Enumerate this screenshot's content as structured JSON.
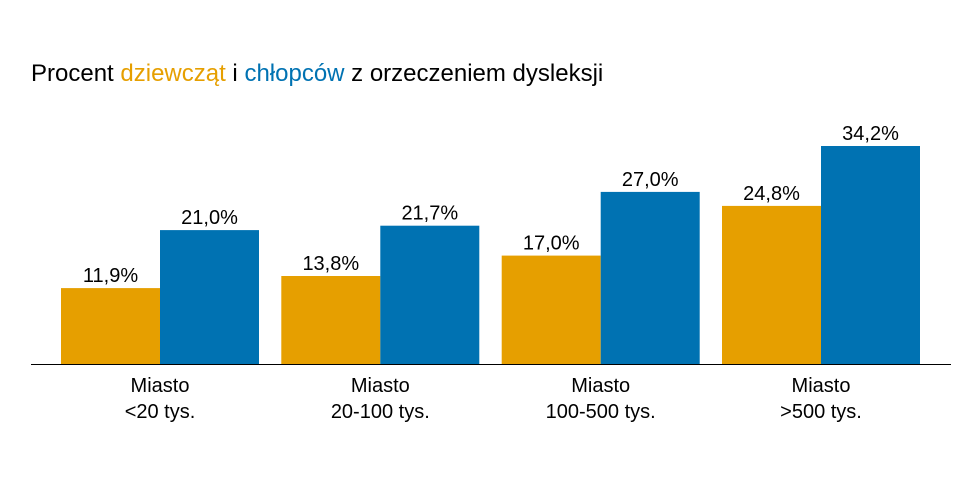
{
  "title": {
    "part1": "Procent ",
    "girls": "dziewcząt",
    "part2": " i ",
    "boys": "chłopców",
    "part3": " z orzeczeniem dysleksji"
  },
  "colors": {
    "girls": "#E69F00",
    "boys": "#0072B2",
    "axis": "#000000"
  },
  "chart_data": {
    "type": "bar",
    "categories": [
      [
        "Miasto",
        "<20 tys."
      ],
      [
        "Miasto",
        "20-100 tys."
      ],
      [
        "Miasto",
        "100-500 tys."
      ],
      [
        "Miasto",
        ">500 tys."
      ]
    ],
    "series": [
      {
        "key": "girls",
        "values": [
          11.9,
          13.8,
          17.0,
          24.8
        ],
        "labels": [
          "11,9%",
          "13,8%",
          "17,0%",
          "24,8%"
        ]
      },
      {
        "key": "boys",
        "values": [
          21.0,
          21.7,
          27.0,
          34.2
        ],
        "labels": [
          "21,0%",
          "21,7%",
          "27,0%",
          "34,2%"
        ]
      }
    ],
    "ylim": [
      0,
      34.2
    ],
    "grid": false,
    "legend": "title-colored"
  }
}
